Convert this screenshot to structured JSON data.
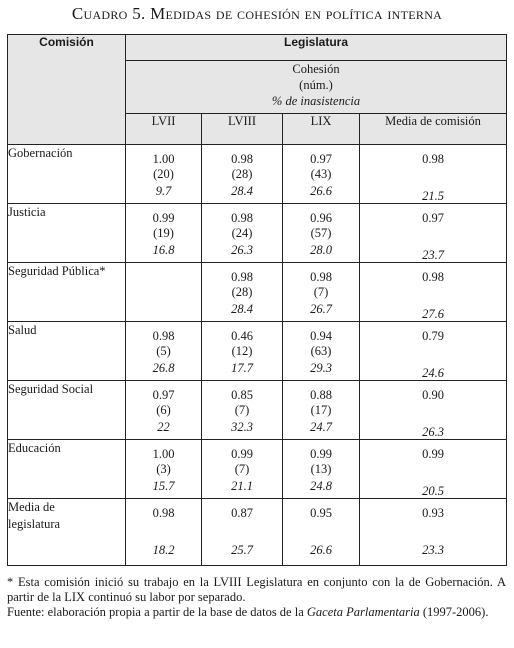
{
  "title": "Cuadro 5. Medidas de cohesión en política interna",
  "header": {
    "commission_label": "Comisión",
    "legislature_label": "Legislatura",
    "cohesion_line1": "Cohesión",
    "cohesion_line2": "(núm.)",
    "cohesion_line3": "% de inasistencia",
    "columns": [
      "LVII",
      "LVIII",
      "LIX",
      "Media de comisión"
    ]
  },
  "rows": [
    {
      "name": "Gobernación",
      "lvii": [
        "1.00",
        "(20)",
        "9.7"
      ],
      "lviii": [
        "0.98",
        "(28)",
        "28.4"
      ],
      "lix": [
        "0.97",
        "(43)",
        "26.6"
      ],
      "media": [
        "0.98",
        "21.5"
      ]
    },
    {
      "name": "Justicia",
      "lvii": [
        "0.99",
        "(19)",
        "16.8"
      ],
      "lviii": [
        "0.98",
        "(24)",
        "26.3"
      ],
      "lix": [
        "0.96",
        "(57)",
        "28.0"
      ],
      "media": [
        "0.97",
        "23.7"
      ]
    },
    {
      "name": "Seguridad Pública*",
      "lvii": [
        "",
        "",
        ""
      ],
      "lviii": [
        "0.98",
        "(28)",
        "28.4"
      ],
      "lix": [
        "0.98",
        "(7)",
        "26.7"
      ],
      "media": [
        "0.98",
        "27.6"
      ]
    },
    {
      "name": "Salud",
      "lvii": [
        "0.98",
        "(5)",
        "26.8"
      ],
      "lviii": [
        "0.46",
        "(12)",
        "17.7"
      ],
      "lix": [
        "0.94",
        "(63)",
        "29.3"
      ],
      "media": [
        "0.79",
        "24.6"
      ]
    },
    {
      "name": "Seguridad Social",
      "lvii": [
        "0.97",
        "(6)",
        "22"
      ],
      "lviii": [
        "0.85",
        "(7)",
        "32.3"
      ],
      "lix": [
        "0.88",
        "(17)",
        "24.7"
      ],
      "media": [
        "0.90",
        "26.3"
      ]
    },
    {
      "name": "Educación",
      "lvii": [
        "1.00",
        "(3)",
        "15.7"
      ],
      "lviii": [
        "0.99",
        "(7)",
        "21.1"
      ],
      "lix": [
        "0.99",
        "(13)",
        "24.8"
      ],
      "media": [
        "0.99",
        "20.5"
      ]
    }
  ],
  "legislature_mean": {
    "name_line1": "Media de",
    "name_line2": "legislatura",
    "lvii": [
      "0.98",
      "18.2"
    ],
    "lviii": [
      "0.87",
      "25.7"
    ],
    "lix": [
      "0.95",
      "26.6"
    ],
    "media": [
      "0.93",
      "23.3"
    ]
  },
  "footnote": "* Esta comisión inició su trabajo en la LVIII Legislatura en conjunto con la de Gobernación. A partir de la LIX continuó su labor por separado.",
  "source": {
    "prefix": "Fuente: elaboración propia a partir de la base de datos de la ",
    "italic": "Gaceta Parlamentaria",
    "suffix": " (1997-2006)."
  }
}
